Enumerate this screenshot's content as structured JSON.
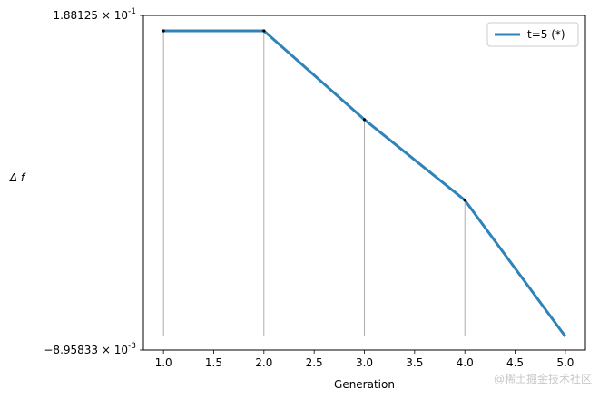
{
  "chart_data": {
    "type": "line",
    "xlabel": "Generation",
    "ylabel": "Δ f",
    "xlim": [
      0.8,
      5.2
    ],
    "xticks": [
      1.0,
      1.5,
      2.0,
      2.5,
      3.0,
      3.5,
      4.0,
      4.5,
      5.0
    ],
    "xtick_labels": [
      "1.0",
      "1.5",
      "2.0",
      "2.5",
      "3.0",
      "3.5",
      "4.0",
      "4.5",
      "5.0"
    ],
    "ylim": [
      -0.00895833,
      0.188125
    ],
    "yticks": [
      {
        "value": 0.188125,
        "mantissa": "1.88125",
        "exponent": "-1"
      },
      {
        "value": -0.00895833,
        "mantissa": "−8.95833",
        "exponent": "-3"
      }
    ],
    "series": [
      {
        "name": "t=5 (*)",
        "color": "#2f83b9",
        "x": [
          1,
          2,
          3,
          4,
          5
        ],
        "y": [
          0.188125,
          0.188125,
          0.1309,
          0.0789,
          -0.00895833
        ]
      }
    ],
    "markers": {
      "color": "#000000",
      "x": [
        1,
        2,
        3,
        4
      ]
    },
    "stems": {
      "color": "#999999",
      "x": [
        1,
        2,
        3,
        4,
        5
      ]
    },
    "legend": {
      "placement": "top-right"
    },
    "grid": false
  },
  "watermark": "@稀土掘金技术社区"
}
